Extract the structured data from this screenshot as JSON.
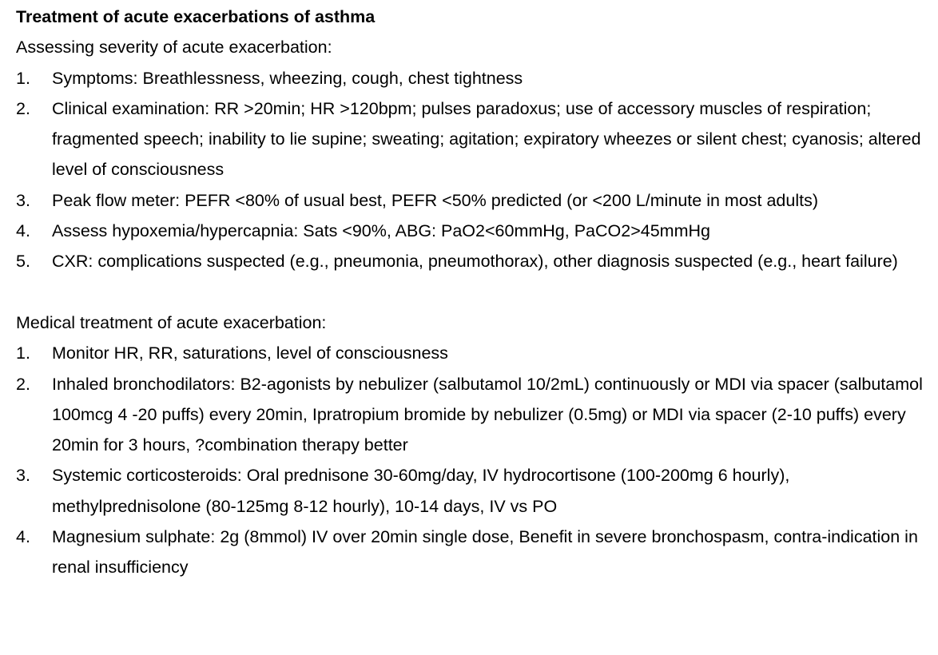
{
  "document": {
    "title": "Treatment of acute exacerbations of asthma",
    "assessment": {
      "heading": "Assessing severity of acute exacerbation:",
      "items": [
        {
          "num": "1.",
          "text": "Symptoms: Breathlessness, wheezing, cough, chest tightness"
        },
        {
          "num": "2.",
          "text": "Clinical examination: RR >20min; HR >120bpm; pulses paradoxus; use of accessory muscles of respiration; fragmented speech; inability to lie supine; sweating; agitation; expiratory wheezes or silent chest; cyanosis; altered level of consciousness"
        },
        {
          "num": "3.",
          "text": "Peak flow meter: PEFR <80% of usual best, PEFR <50% predicted (or <200 L/minute in most adults)"
        },
        {
          "num": "4.",
          "text": "Assess hypoxemia/hypercapnia: Sats <90%, ABG: PaO2<60mmHg, PaCO2>45mmHg"
        },
        {
          "num": "5.",
          "text": "CXR: complications suspected (e.g., pneumonia, pneumothorax), other diagnosis suspected (e.g., heart failure)"
        }
      ]
    },
    "treatment": {
      "heading": "Medical treatment of acute exacerbation:",
      "items": [
        {
          "num": "1.",
          "text": "Monitor HR, RR, saturations, level of consciousness"
        },
        {
          "num": "2.",
          "text": "Inhaled bronchodilators: B2-agonists by nebulizer (salbutamol 10/2mL) continuously or MDI via spacer (salbutamol 100mcg 4 -20 puffs) every 20min, Ipratropium bromide by nebulizer (0.5mg) or MDI via spacer (2-10 puffs) every 20min for 3 hours, ?combination therapy better"
        },
        {
          "num": "3.",
          "text": "Systemic corticosteroids: Oral prednisone 30-60mg/day, IV hydrocortisone (100-200mg 6 hourly), methylprednisolone (80-125mg 8-12 hourly), 10-14 days, IV vs PO"
        },
        {
          "num": "4.",
          "text": "Magnesium sulphate: 2g (8mmol) IV over 20min single dose, Benefit in severe bronchospasm, contra-indication in renal insufficiency"
        }
      ]
    }
  }
}
